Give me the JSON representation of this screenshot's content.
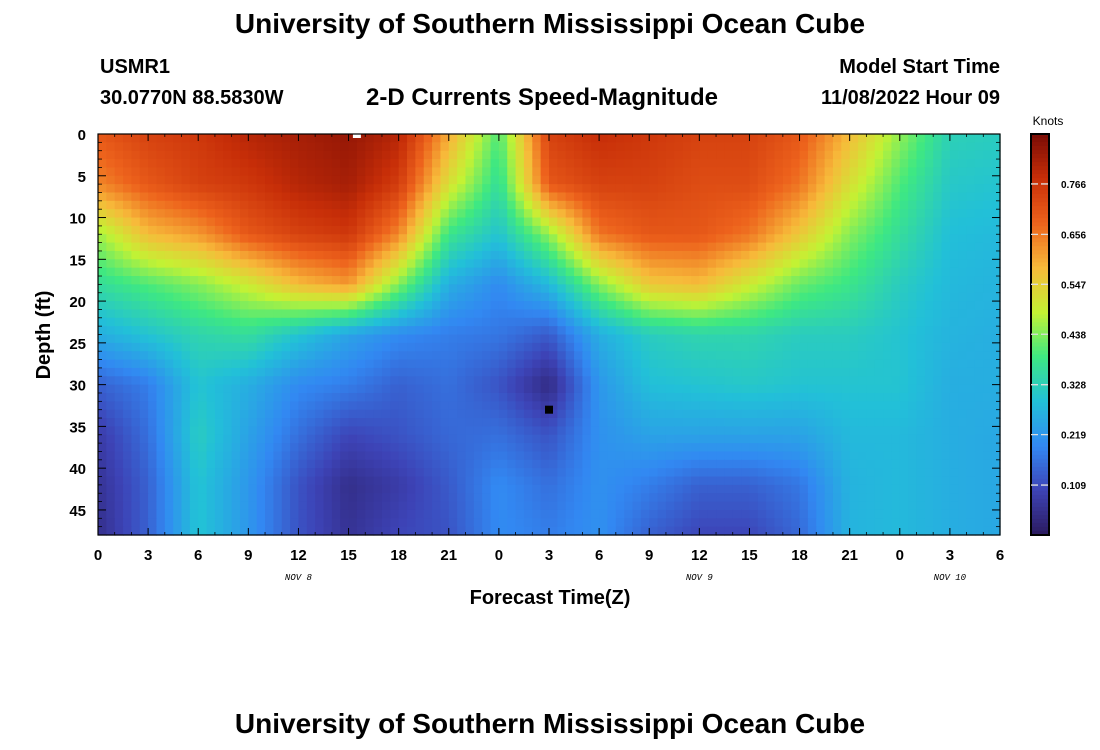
{
  "header": {
    "title": "University of Southern Mississippi Ocean Cube",
    "station_id": "USMR1",
    "station_coords": "30.0770N  88.5830W",
    "chart_title": "2-D Currents Speed-Magnitude",
    "start_label": "Model Start Time",
    "start_value": "11/08/2022 Hour 09"
  },
  "footer": {
    "title": "University of Southern Mississippi Ocean Cube"
  },
  "colors": {
    "palette": [
      "#2b1a5e",
      "#3d43b6",
      "#3288f2",
      "#22c0d8",
      "#3ee882",
      "#c4f233",
      "#f7ba3a",
      "#ed621c",
      "#c72e08",
      "#7a0b05"
    ]
  },
  "chart_data": {
    "type": "heatmap",
    "xlabel": "Forecast Time(Z)",
    "ylabel": "Depth (ft)",
    "x_tick_labels": [
      "0",
      "3",
      "6",
      "9",
      "12",
      "15",
      "18",
      "21",
      "0",
      "3",
      "6",
      "9",
      "12",
      "15",
      "18",
      "21",
      "0",
      "3",
      "6"
    ],
    "x_range_hours": [
      0,
      54
    ],
    "date_labels": [
      {
        "text": "NOV 8",
        "hour": 12
      },
      {
        "text": "NOV 9",
        "hour": 36
      },
      {
        "text": "NOV 10",
        "hour": 51
      }
    ],
    "y_tick_labels": [
      "0",
      "5",
      "10",
      "15",
      "20",
      "25",
      "30",
      "35",
      "40",
      "45"
    ],
    "ylim": [
      0,
      48
    ],
    "colorbar_label": "Knots",
    "colorbar_ticks": [
      "0.766",
      "0.656",
      "0.547",
      "0.438",
      "0.328",
      "0.219",
      "0.109"
    ],
    "value_range": [
      0.0,
      0.875
    ],
    "depths_ft": [
      0,
      6,
      12,
      18,
      24,
      30,
      36,
      42,
      48
    ],
    "hours": [
      0,
      3,
      6,
      9,
      12,
      15,
      18,
      21,
      24,
      27,
      30,
      33,
      36,
      39,
      42,
      45,
      48,
      51,
      54
    ],
    "values": [
      [
        0.7,
        0.74,
        0.76,
        0.8,
        0.82,
        0.84,
        0.8,
        0.6,
        0.4,
        0.74,
        0.78,
        0.76,
        0.74,
        0.74,
        0.7,
        0.58,
        0.45,
        0.33,
        0.32
      ],
      [
        0.64,
        0.7,
        0.74,
        0.76,
        0.8,
        0.82,
        0.75,
        0.52,
        0.36,
        0.7,
        0.74,
        0.74,
        0.72,
        0.72,
        0.66,
        0.52,
        0.4,
        0.31,
        0.3
      ],
      [
        0.46,
        0.58,
        0.62,
        0.7,
        0.74,
        0.76,
        0.64,
        0.38,
        0.3,
        0.45,
        0.66,
        0.7,
        0.7,
        0.66,
        0.56,
        0.44,
        0.36,
        0.29,
        0.28
      ],
      [
        0.36,
        0.4,
        0.44,
        0.5,
        0.58,
        0.62,
        0.44,
        0.26,
        0.2,
        0.28,
        0.44,
        0.56,
        0.58,
        0.5,
        0.42,
        0.38,
        0.32,
        0.28,
        0.27
      ],
      [
        0.26,
        0.3,
        0.34,
        0.36,
        0.3,
        0.24,
        0.2,
        0.18,
        0.17,
        0.13,
        0.26,
        0.32,
        0.34,
        0.34,
        0.32,
        0.32,
        0.3,
        0.27,
        0.26
      ],
      [
        0.14,
        0.18,
        0.3,
        0.26,
        0.2,
        0.18,
        0.14,
        0.16,
        0.12,
        0.04,
        0.22,
        0.29,
        0.3,
        0.31,
        0.3,
        0.3,
        0.3,
        0.26,
        0.26
      ],
      [
        0.08,
        0.16,
        0.32,
        0.24,
        0.16,
        0.1,
        0.12,
        0.15,
        0.16,
        0.12,
        0.21,
        0.24,
        0.24,
        0.24,
        0.24,
        0.28,
        0.28,
        0.26,
        0.25
      ],
      [
        0.06,
        0.14,
        0.3,
        0.22,
        0.12,
        0.05,
        0.08,
        0.13,
        0.2,
        0.16,
        0.21,
        0.18,
        0.14,
        0.14,
        0.17,
        0.27,
        0.28,
        0.26,
        0.25
      ],
      [
        0.05,
        0.14,
        0.3,
        0.22,
        0.12,
        0.06,
        0.1,
        0.12,
        0.2,
        0.18,
        0.21,
        0.14,
        0.1,
        0.1,
        0.15,
        0.27,
        0.28,
        0.26,
        0.25
      ]
    ],
    "markers": [
      {
        "hour": 15.5,
        "depth": 0,
        "color": "#ffffff"
      },
      {
        "hour": 27,
        "depth": 33,
        "color": "#000000"
      }
    ]
  }
}
